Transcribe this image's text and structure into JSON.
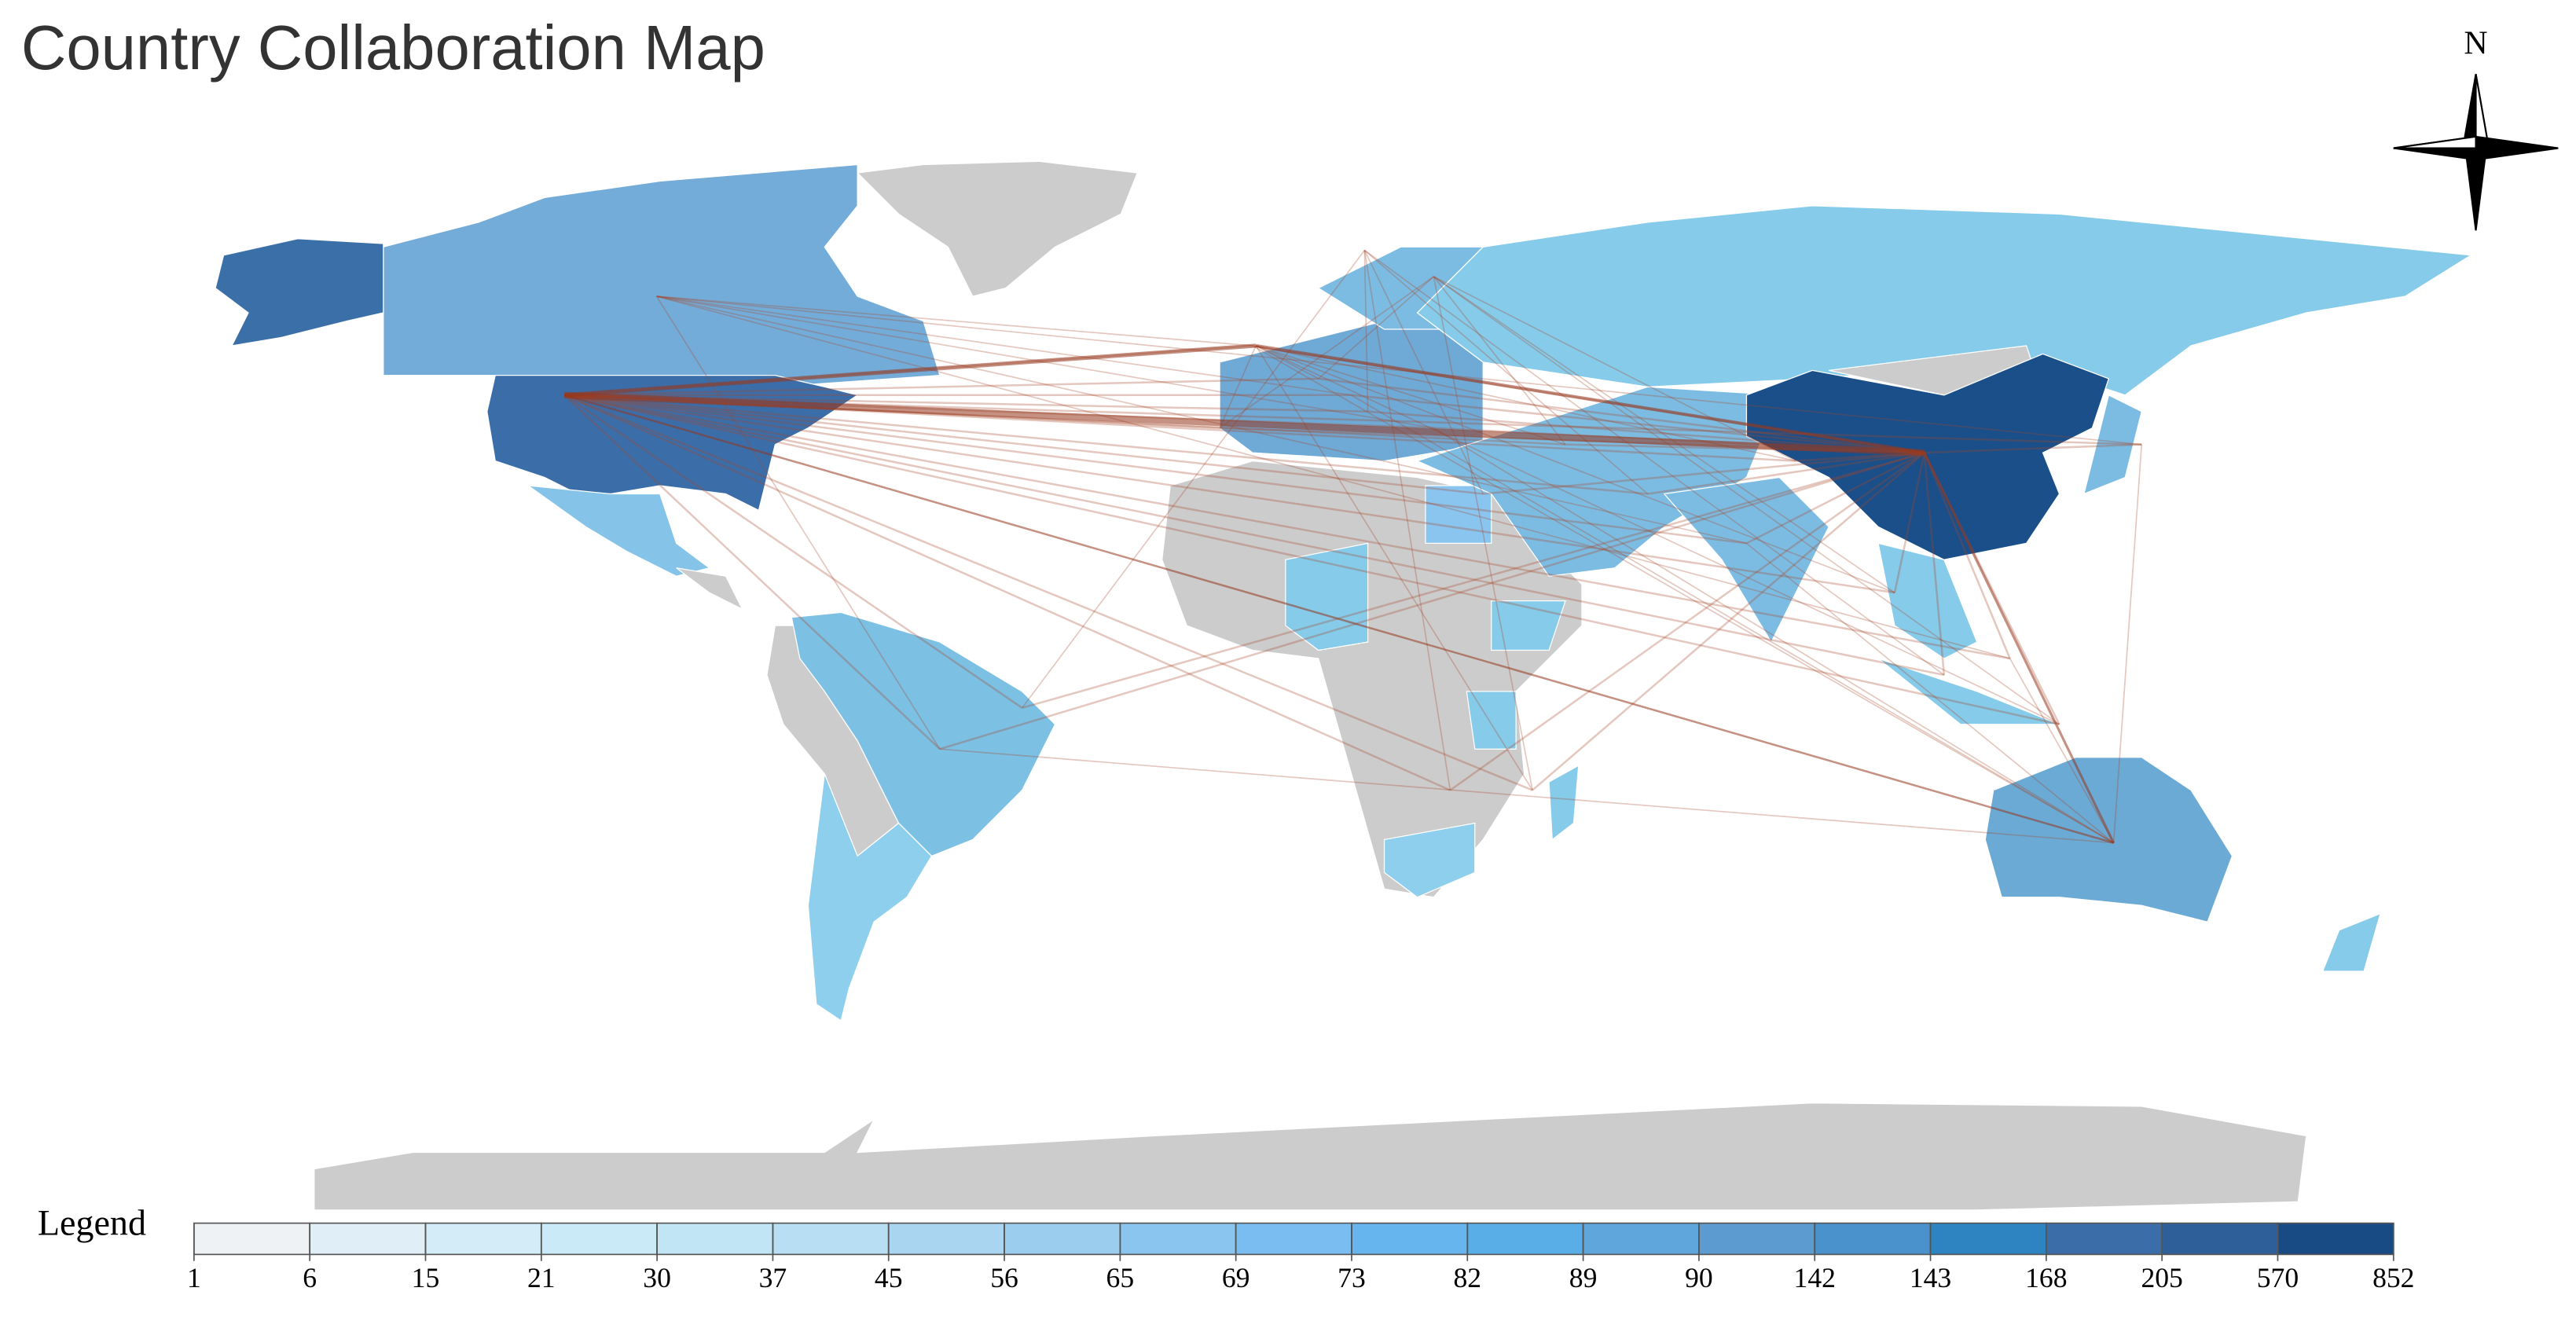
{
  "title": "Country Collaboration Map",
  "compass": {
    "label": "N"
  },
  "legend": {
    "label": "Legend",
    "breaks": [
      1,
      6,
      15,
      21,
      30,
      37,
      45,
      56,
      65,
      69,
      73,
      82,
      89,
      90,
      142,
      143,
      168,
      205,
      570,
      852
    ],
    "colors": [
      "#eef2f5",
      "#dfeef7",
      "#d4ecf7",
      "#cbeaf7",
      "#c2e5f5",
      "#b8def3",
      "#aad5f1",
      "#9bcdef",
      "#8ac5ef",
      "#7abdf0",
      "#66b5ef",
      "#5aaee8",
      "#5ea6db",
      "#5b9bd0",
      "#4a92cc",
      "#2e84c0",
      "#3b6ea9",
      "#2e5f98",
      "#184b83"
    ]
  }
}
